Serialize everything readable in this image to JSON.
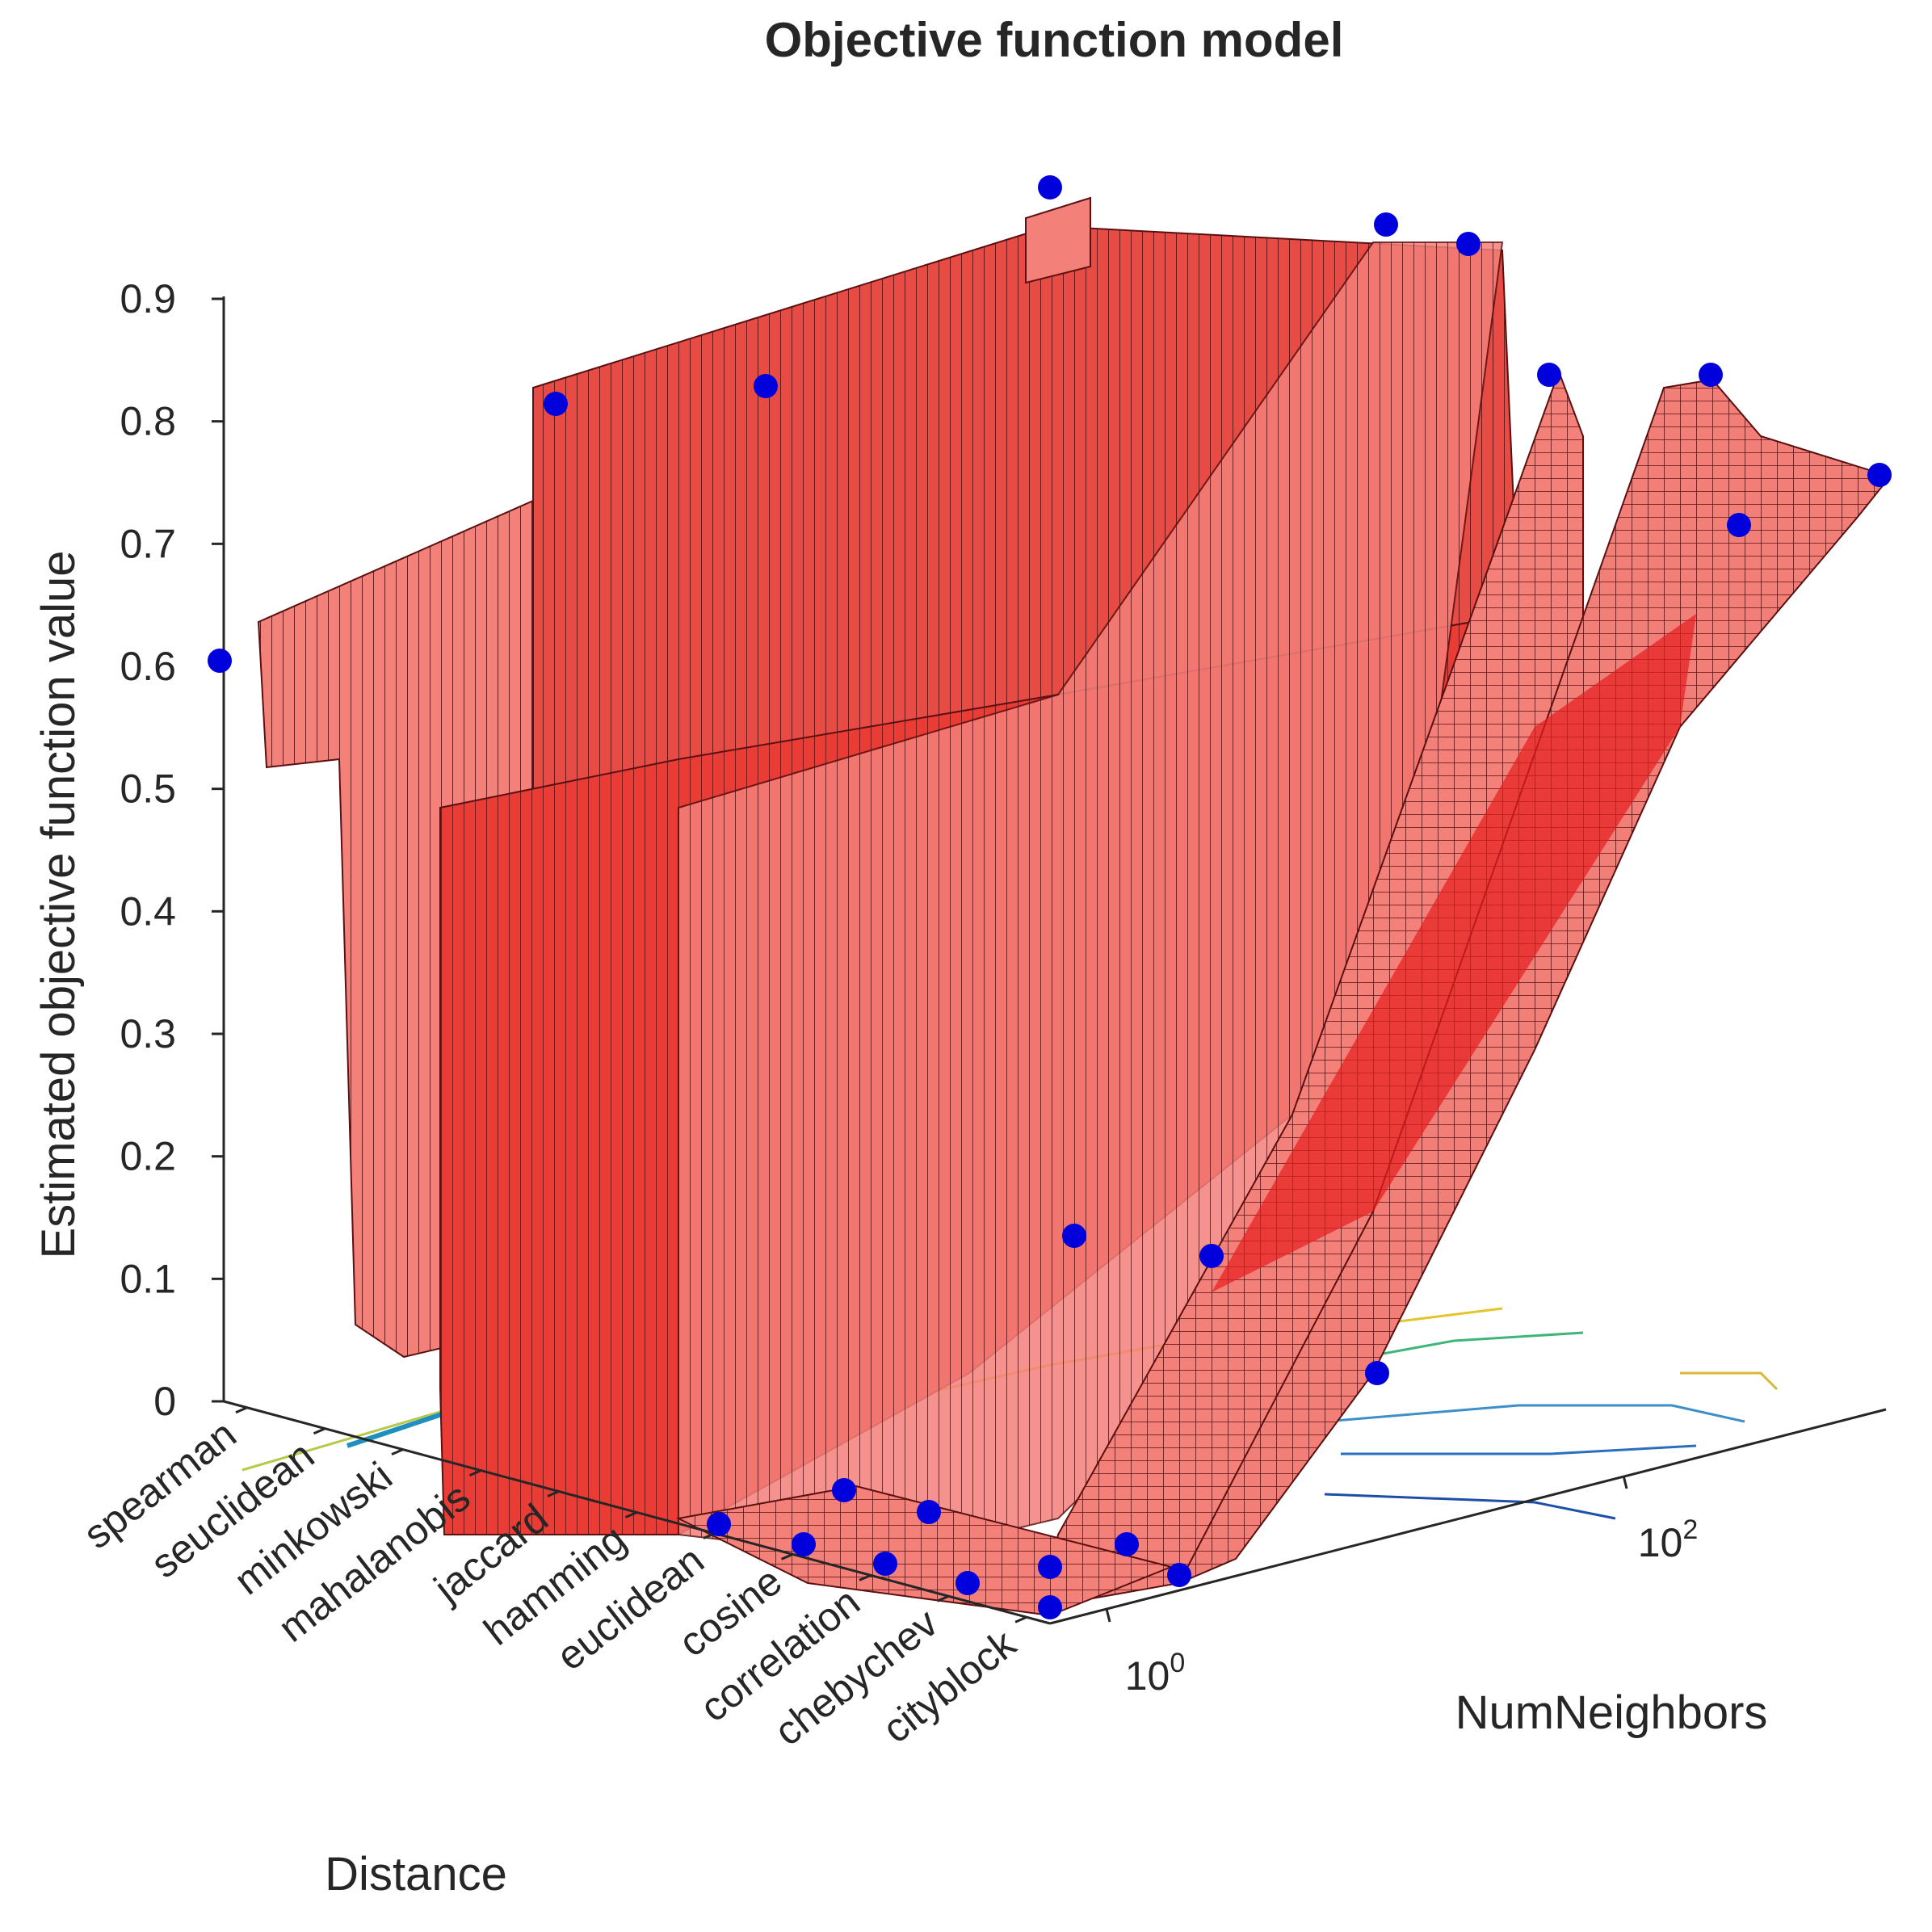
{
  "chart_data": {
    "type": "surface3d",
    "title": "Objective function model",
    "xlabel": "Distance",
    "ylabel": "NumNeighbors",
    "zlabel": "Estimated objective function value",
    "zlim": [
      0,
      0.9
    ],
    "z_ticks": [
      "0",
      "0.1",
      "0.2",
      "0.3",
      "0.4",
      "0.5",
      "0.6",
      "0.7",
      "0.8",
      "0.9"
    ],
    "distance_categories": [
      "spearman",
      "seuclidean",
      "minkowski",
      "mahalanobis",
      "jaccard",
      "hamming",
      "euclidean",
      "cosine",
      "correlation",
      "chebychev",
      "cityblock"
    ],
    "numneighbors_ticks": [
      {
        "base": "10",
        "exp": "0"
      },
      {
        "base": "10",
        "exp": "2"
      }
    ],
    "surface_color": "#f4807a",
    "surface_dark_color": "#e51e1e",
    "point_color": "#0000dd",
    "observed_points": [
      {
        "distance": "spearman",
        "value": 0.6
      },
      {
        "distance": "hamming",
        "value": 0.82
      },
      {
        "distance": "euclidean",
        "value": 0.83
      },
      {
        "distance": "cosine",
        "value": 0.99
      },
      {
        "distance": "correlation",
        "value": 0.96
      },
      {
        "distance": "chebychev",
        "value": 0.95
      },
      {
        "distance": "chebychev",
        "value": 0.85
      },
      {
        "distance": "cityblock",
        "value": 0.86
      },
      {
        "distance": "cityblock",
        "value": 0.78
      },
      {
        "distance": "cityblock",
        "value": 0.72
      },
      {
        "distance": "correlation",
        "value": 0.13
      },
      {
        "distance": "chebychev",
        "value": 0.12
      },
      {
        "distance": "cityblock",
        "value": 0.02
      },
      {
        "distance": "euclidean",
        "value": 0.0
      },
      {
        "distance": "cosine",
        "value": 0.0
      },
      {
        "distance": "correlation",
        "value": 0.0
      },
      {
        "distance": "chebychev",
        "value": 0.0
      },
      {
        "distance": "cityblock",
        "value": 0.0
      }
    ]
  }
}
